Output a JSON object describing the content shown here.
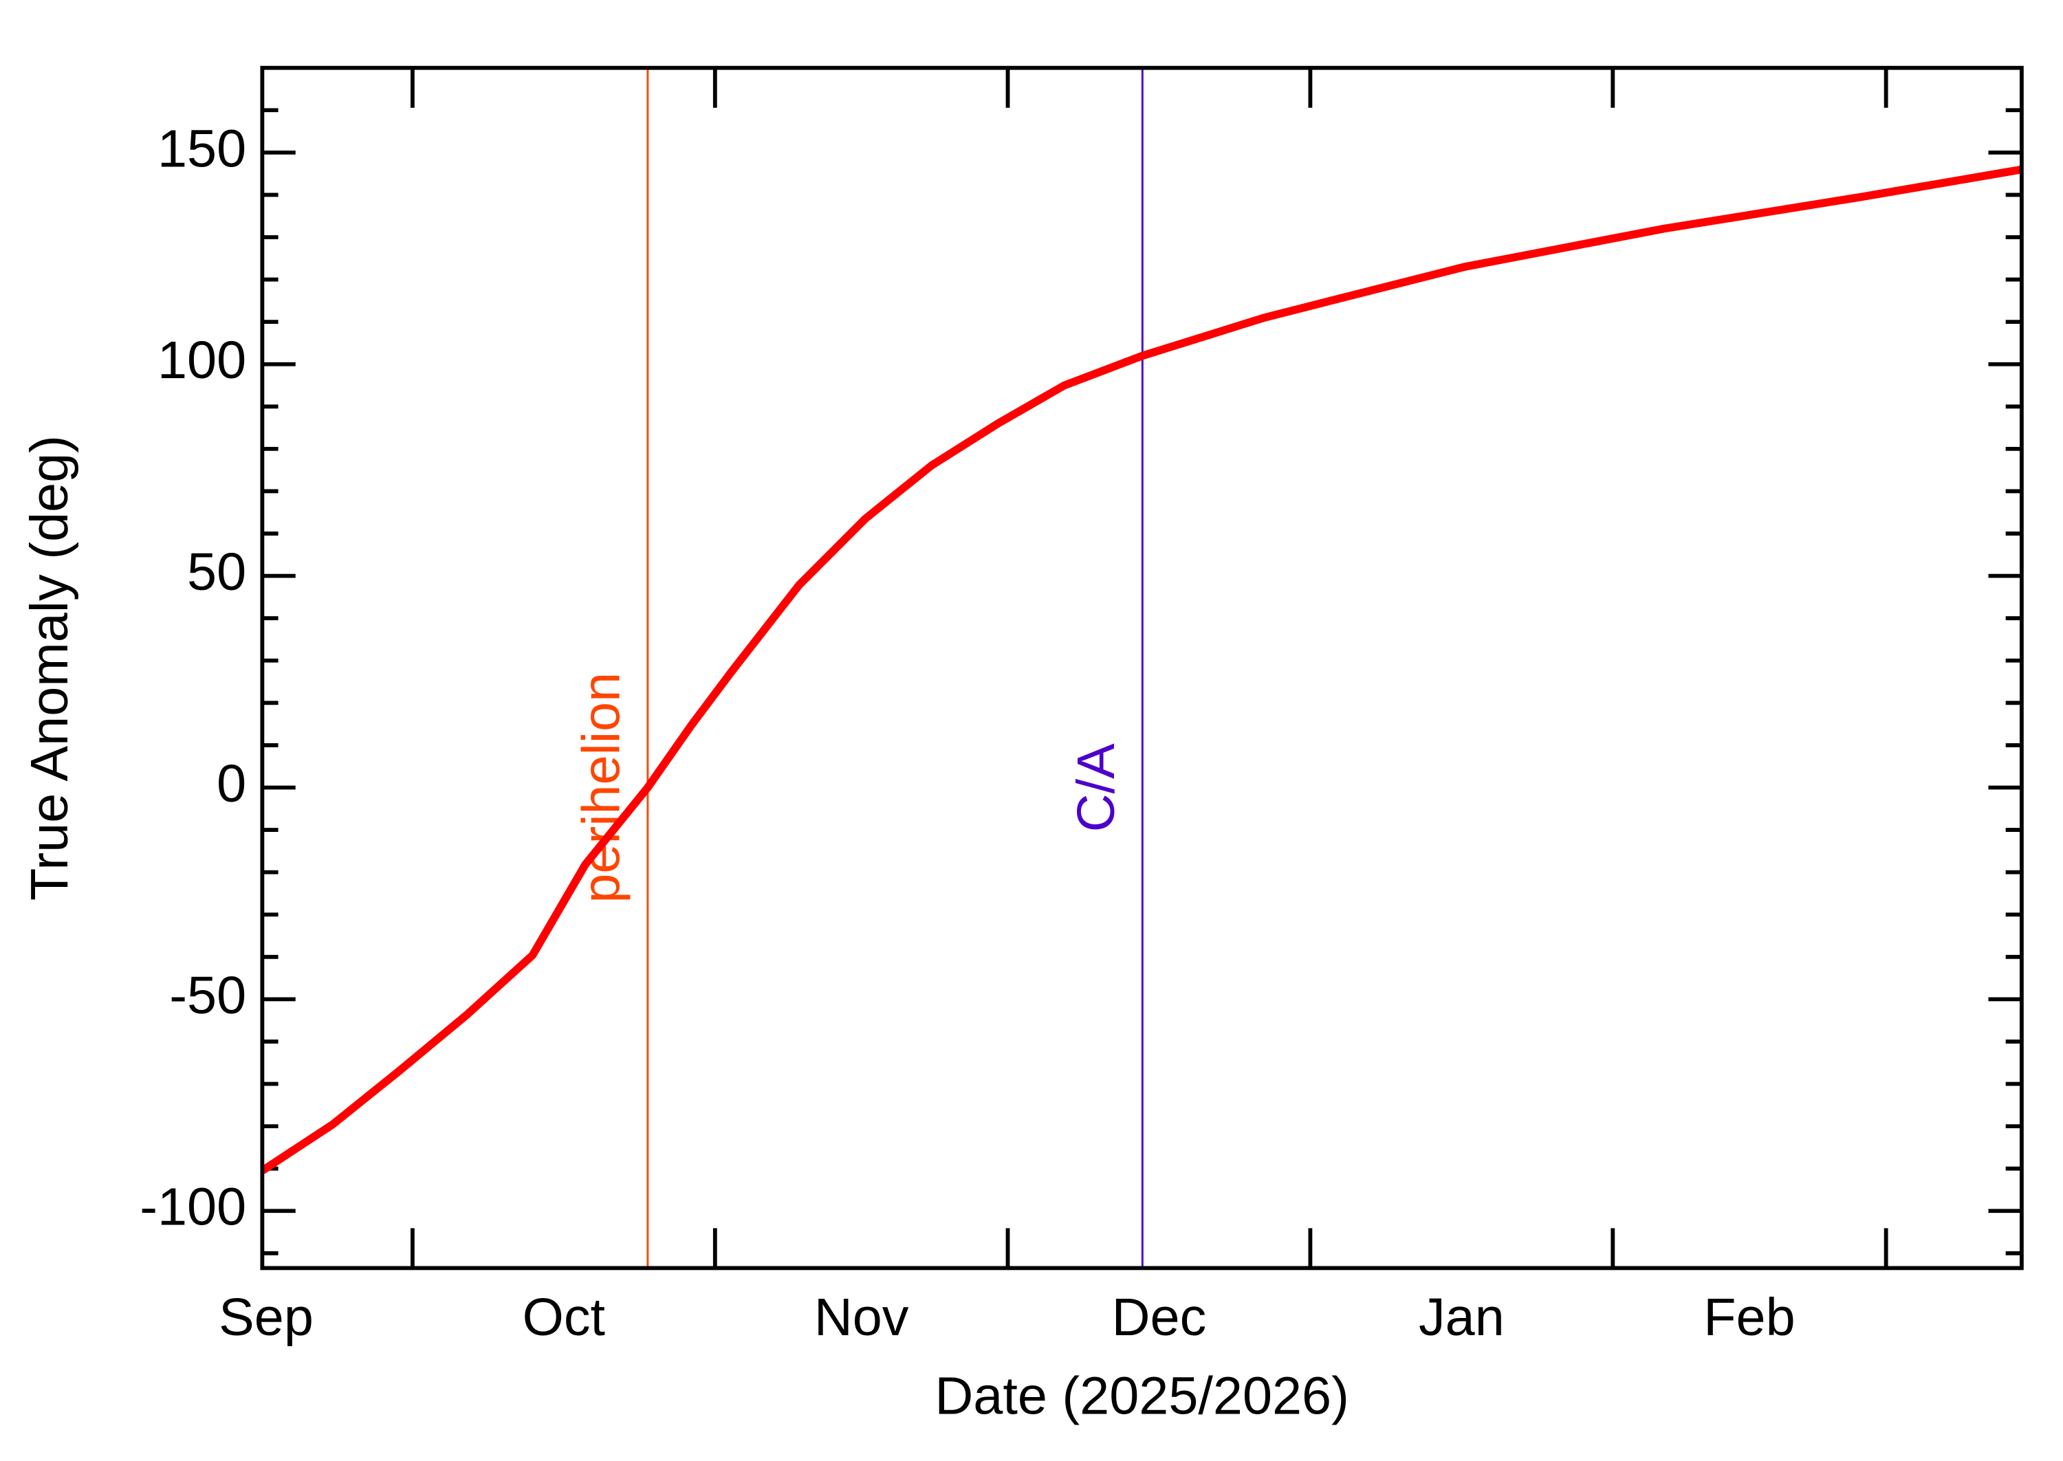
{
  "chart_data": {
    "type": "line",
    "x_label": "Date (2025/2026)",
    "y_label": "True Anomaly (deg)",
    "xlim": [
      14.6,
      194.9
    ],
    "xticks": [
      30,
      61,
      91,
      122,
      153,
      181
    ],
    "month_labels": [
      {
        "value": 15,
        "label": "Sep"
      },
      {
        "value": 45.5,
        "label": "Oct"
      },
      {
        "value": 76,
        "label": "Nov"
      },
      {
        "value": 106.5,
        "label": "Dec"
      },
      {
        "value": 137.5,
        "label": "Jan"
      },
      {
        "value": 167,
        "label": "Feb"
      }
    ],
    "ylim": [
      -113.5,
      170
    ],
    "yticks": [
      -100,
      -50,
      0,
      50,
      100,
      150
    ],
    "y_minor_ticks": [
      -110,
      -90,
      -80,
      -70,
      -60,
      -40,
      -30,
      -20,
      -10,
      10,
      20,
      30,
      40,
      60,
      70,
      80,
      90,
      110,
      120,
      130,
      140,
      160
    ],
    "series": [
      {
        "color": "#ff0000",
        "x": [
          14.6,
          21.8,
          28.6,
          35.5,
          42.3,
          47.7,
          54.1,
          58.6,
          62.7,
          69.6,
          76.4,
          83.2,
          90.0,
          96.8,
          104.8,
          117.3,
          124.1,
          137.8,
          158.2,
          178.7,
          194.9
        ],
        "values": [
          -90.5,
          -79.6,
          -67,
          -53.8,
          -39.6,
          -18.2,
          0,
          14.8,
          27.4,
          47.8,
          63.5,
          76.1,
          86,
          95,
          102,
          111,
          115,
          123,
          132,
          139.6,
          146
        ]
      }
    ],
    "vlines": [
      {
        "x": 54.1,
        "label": "perihelion",
        "color": "#ff4500"
      },
      {
        "x": 104.8,
        "label": "C/A",
        "color": "#4b00cc"
      }
    ]
  }
}
